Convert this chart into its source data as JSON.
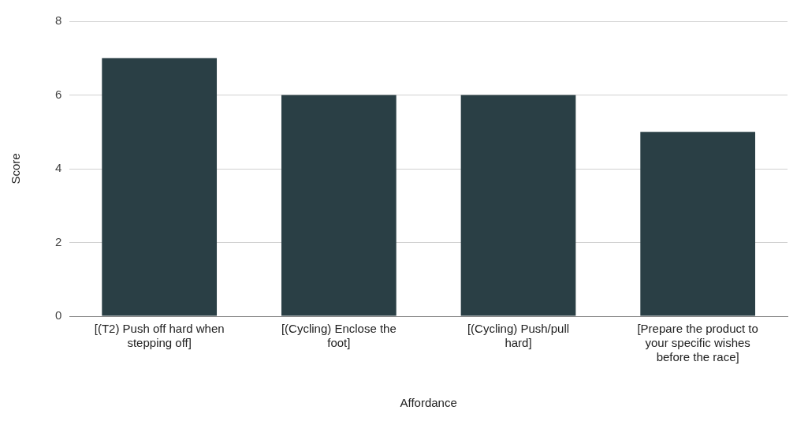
{
  "chart_data": {
    "type": "bar",
    "xlabel": "Affordance",
    "ylabel": "Score",
    "categories": [
      "[(T2) Push off hard when stepping off]",
      "[(Cycling) Enclose the foot]",
      "[(Cycling) Push/pull hard]",
      "[Prepare the product to your specific wishes before the race]"
    ],
    "values": [
      7,
      6,
      6,
      5
    ],
    "color": "#2a3f45",
    "ylim": [
      0,
      8
    ],
    "yticks": [
      0,
      2,
      4,
      6,
      8
    ],
    "grid": "y",
    "legend": false
  }
}
